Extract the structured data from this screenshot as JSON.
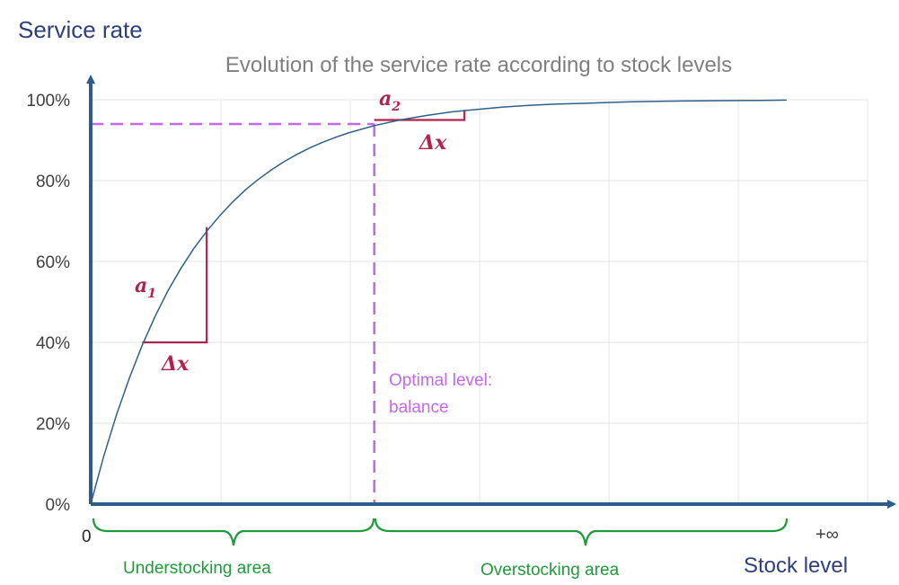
{
  "chart_data": {
    "type": "line",
    "title": "Evolution of the service rate according to stock levels",
    "ylabel": "Service rate",
    "xlabel": "Stock level",
    "y_ticks": [
      "0%",
      "20%",
      "40%",
      "60%",
      "80%",
      "100%"
    ],
    "ylim": [
      0,
      100
    ],
    "x_origin_label": "0",
    "x_end_label": "+∞",
    "grid": true,
    "series": [
      {
        "x": [
          0,
          0.5,
          1,
          1.5,
          2,
          2.5,
          3,
          3.5,
          4,
          4.5,
          5,
          5.5,
          6,
          6.5,
          7,
          7.5,
          8,
          8.5,
          9,
          9.5,
          10,
          11,
          12,
          13,
          14,
          15,
          16,
          17,
          18,
          19,
          20,
          21,
          22,
          23,
          24,
          25,
          26,
          27
        ],
        "y": [
          0,
          11.7,
          22.1,
          31.2,
          39.3,
          46.5,
          52.8,
          58.3,
          63.2,
          67.5,
          71.3,
          74.7,
          77.7,
          80.3,
          82.6,
          84.7,
          86.5,
          88.1,
          89.5,
          90.7,
          91.8,
          93.6,
          95.0,
          96.1,
          97.0,
          97.6,
          98.2,
          98.6,
          98.9,
          99.1,
          99.3,
          99.5,
          99.6,
          99.7,
          99.75,
          99.8,
          99.85,
          99.9
        ]
      }
    ],
    "annotations": {
      "optimal_level_label_line1": "Optimal level:",
      "optimal_level_label_line2": "balance",
      "optimal_x": 11,
      "optimal_y": 94,
      "slope1_label": "a",
      "slope1_sub": "1",
      "slope1_from": {
        "x": 2,
        "y": 40
      },
      "slope1_to": {
        "x": 4.5,
        "y": 68.5
      },
      "slope2_label": "a",
      "slope2_sub": "2",
      "slope2_from": {
        "x": 11,
        "y": 95
      },
      "slope2_to": {
        "x": 14.5,
        "y": 97.5
      },
      "delta_label": "Δx",
      "understocking_label": "Understocking area",
      "overstocking_label": "Overstocking area"
    },
    "colors": {
      "curve": "#2f5f8a",
      "axis": "#2e5a8c",
      "optimal": "#c468ee",
      "slope": "#b0234f",
      "brace": "#1f9a3a",
      "grid": "#e4e4e4"
    }
  }
}
